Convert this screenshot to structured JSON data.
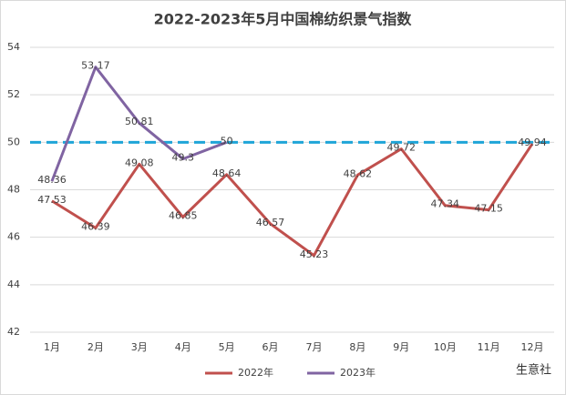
{
  "chart_data": {
    "type": "line",
    "title": "2022-2023年5月中国棉纺织景气指数",
    "categories": [
      "1月",
      "2月",
      "3月",
      "4月",
      "5月",
      "6月",
      "7月",
      "8月",
      "9月",
      "10月",
      "11月",
      "12月"
    ],
    "series": [
      {
        "name": "2022年",
        "color": "#c0504d",
        "values": [
          47.53,
          46.39,
          49.08,
          46.85,
          48.64,
          46.57,
          45.23,
          48.62,
          49.72,
          47.34,
          47.15,
          49.94
        ]
      },
      {
        "name": "2023年",
        "color": "#8064a2",
        "values": [
          48.36,
          53.17,
          50.81,
          49.3,
          50,
          null,
          null,
          null,
          null,
          null,
          null,
          null
        ]
      }
    ],
    "ylim": [
      42,
      54
    ],
    "yticks": [
      42,
      44,
      46,
      48,
      50,
      52,
      54
    ],
    "grid": true,
    "reference_line": {
      "value": 50,
      "color": "#1fa5d8"
    },
    "legend": "bottom",
    "watermark": "生意社"
  }
}
